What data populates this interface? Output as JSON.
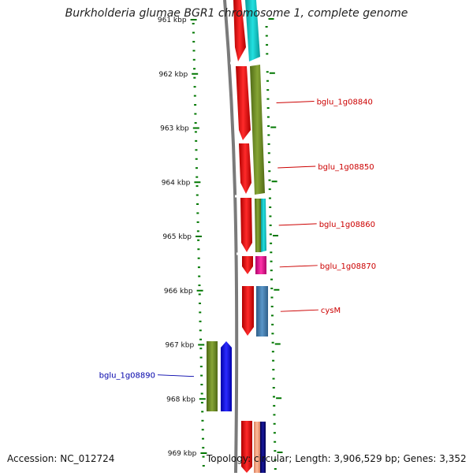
{
  "title": "Burkholderia glumae BGR1 chromosome 1, complete genome",
  "footer": {
    "accession": "Accession: NC_012724",
    "topology": "Topology: circular; Length: 3,906,529 bp; Genes: 3,352"
  },
  "ticks": [
    {
      "label": "961 kbp",
      "kbp": 961
    },
    {
      "label": "962 kbp",
      "kbp": 962
    },
    {
      "label": "963 kbp",
      "kbp": 963
    },
    {
      "label": "964 kbp",
      "kbp": 964
    },
    {
      "label": "965 kbp",
      "kbp": 965
    },
    {
      "label": "966 kbp",
      "kbp": 966
    },
    {
      "label": "967 kbp",
      "kbp": 967
    },
    {
      "label": "968 kbp",
      "kbp": 968
    },
    {
      "label": "969 kbp",
      "kbp": 969
    }
  ],
  "gene_labels": [
    {
      "text": "bglu_1g08840",
      "color": "#cc0000",
      "side": "right",
      "kbp": 962.52
    },
    {
      "text": "bglu_1g08850",
      "color": "#cc0000",
      "side": "right",
      "kbp": 963.72
    },
    {
      "text": "bglu_1g08860",
      "color": "#cc0000",
      "side": "right",
      "kbp": 964.78
    },
    {
      "text": "bglu_1g08870",
      "color": "#cc0000",
      "side": "right",
      "kbp": 965.55
    },
    {
      "text": "cysM",
      "color": "#cc0000",
      "side": "right",
      "kbp": 966.37
    },
    {
      "text": "bglu_1g08890",
      "color": "#0000aa",
      "side": "left",
      "kbp": 967.57
    }
  ],
  "colors": {
    "tick": "#007700",
    "backbone": "#777777",
    "red": "#ff0000",
    "cyan": "#11cccc",
    "olive": "#6b8e23",
    "magenta": "#ee1199",
    "steel": "#4682b4",
    "blue": "#0000ff",
    "salmon": "#ffaa88",
    "navy": "#000080"
  }
}
